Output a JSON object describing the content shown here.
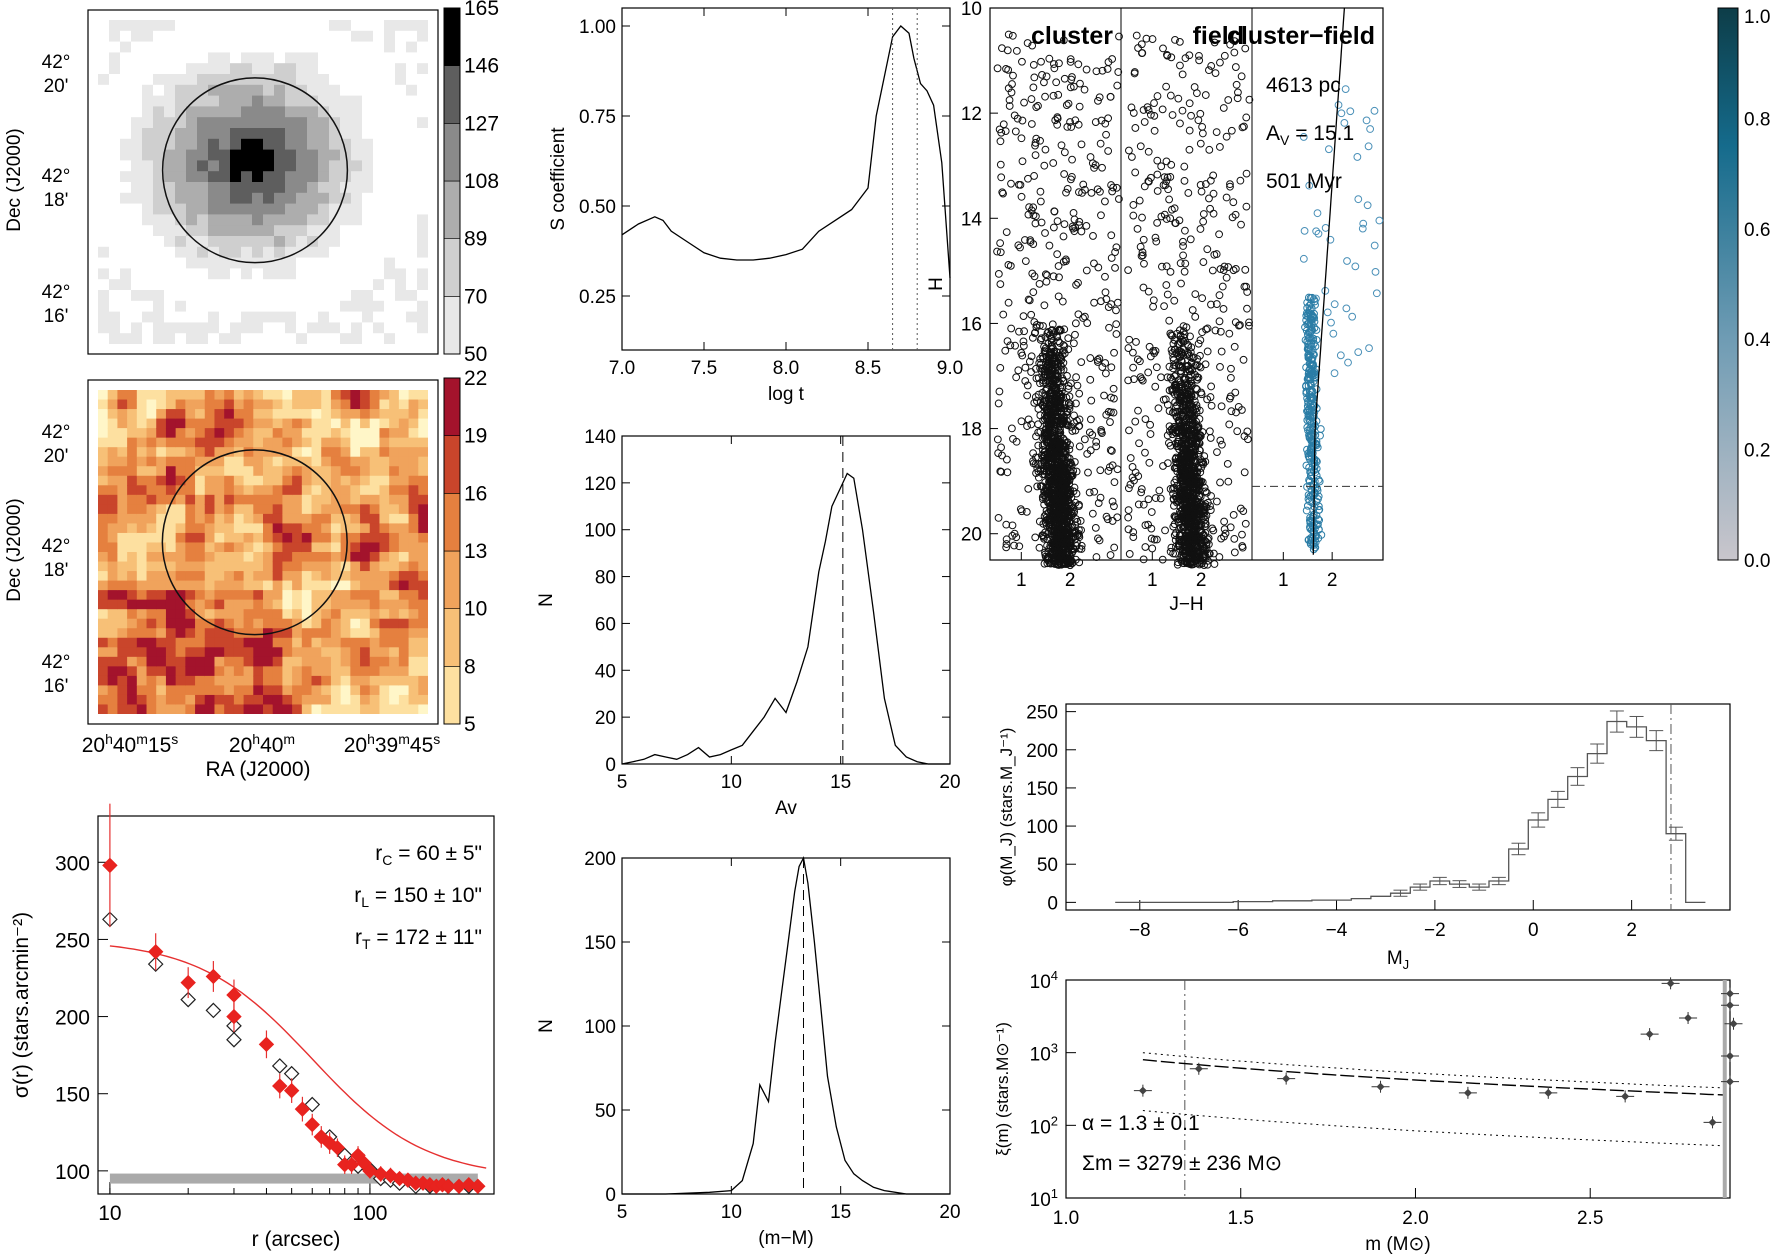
{
  "chart_data": [
    {
      "id": "density_map",
      "type": "heatmap",
      "ylabel": "Dec (J2000)",
      "yticks": [
        {
          "deg": "42°",
          "min": "20'"
        },
        {
          "deg": "42°",
          "min": "18'"
        },
        {
          "deg": "42°",
          "min": "16'"
        }
      ],
      "colorbar": {
        "levels": [
          "50",
          "70",
          "89",
          "108",
          "127",
          "146",
          "165"
        ],
        "colors": [
          "#ffffff",
          "#e8e8e8",
          "#cfcfcf",
          "#adadad",
          "#8a8a8a",
          "#5e5e5e",
          "#000000"
        ]
      },
      "circle_center_frac": [
        0.5,
        0.47
      ],
      "circle_radius_frac": 0.28
    },
    {
      "id": "extinction_map",
      "type": "heatmap",
      "ylabel": "Dec (J2000)",
      "xlabel": "RA (J2000)",
      "yticks": [
        {
          "deg": "42°",
          "min": "20'"
        },
        {
          "deg": "42°",
          "min": "18'"
        },
        {
          "deg": "42°",
          "min": "16'"
        }
      ],
      "xticks": [
        {
          "h": "20",
          "m": "40",
          "s": "15",
          "unit_s": "s"
        },
        {
          "h": "20",
          "m": "40",
          "s": "",
          "unit_s": "m"
        },
        {
          "h": "20",
          "m": "39",
          "s": "45",
          "unit_s": "s"
        }
      ],
      "colorbar": {
        "levels": [
          "5",
          "8",
          "10",
          "13",
          "16",
          "19",
          "22"
        ],
        "colors": [
          "#fff6c8",
          "#fde0a0",
          "#f7c077",
          "#f0a35c",
          "#e5803f",
          "#c9452b",
          "#a3132c"
        ]
      }
    },
    {
      "id": "s_coefficient",
      "type": "line",
      "xlabel": "log t",
      "ylabel": "S coefficient",
      "xlim": [
        7.0,
        9.0
      ],
      "ylim": [
        0.1,
        1.05
      ],
      "xticks": [
        "7.0",
        "7.5",
        "8.0",
        "8.5",
        "9.0"
      ],
      "yticks": [
        "0.25",
        "0.50",
        "0.75",
        "1.00"
      ],
      "x": [
        7.0,
        7.1,
        7.2,
        7.25,
        7.3,
        7.4,
        7.5,
        7.6,
        7.7,
        7.8,
        7.9,
        8.0,
        8.1,
        8.2,
        8.3,
        8.4,
        8.5,
        8.55,
        8.6,
        8.65,
        8.7,
        8.75,
        8.78,
        8.82,
        8.86,
        8.9,
        8.95,
        9.0
      ],
      "y": [
        0.42,
        0.45,
        0.47,
        0.46,
        0.43,
        0.4,
        0.37,
        0.355,
        0.35,
        0.35,
        0.355,
        0.365,
        0.38,
        0.43,
        0.46,
        0.49,
        0.55,
        0.75,
        0.86,
        0.97,
        1.0,
        0.98,
        0.91,
        0.84,
        0.82,
        0.78,
        0.62,
        0.3
      ],
      "vlines": [
        8.65,
        8.8
      ]
    },
    {
      "id": "av_hist",
      "type": "line",
      "xlabel": "Av",
      "ylabel": "N",
      "xlim": [
        5,
        20
      ],
      "ylim": [
        0,
        140
      ],
      "xticks": [
        "5",
        "10",
        "15",
        "20"
      ],
      "yticks": [
        "0",
        "20",
        "40",
        "60",
        "80",
        "100",
        "120",
        "140"
      ],
      "x": [
        5,
        5.5,
        6,
        6.5,
        7,
        7.5,
        8,
        8.5,
        9,
        9.5,
        10,
        10.5,
        11,
        11.5,
        12,
        12.5,
        13,
        13.5,
        14,
        14.3,
        14.6,
        15,
        15.3,
        15.6,
        16,
        16.5,
        17,
        17.5,
        18,
        18.5,
        19,
        20
      ],
      "y": [
        0,
        1,
        2,
        4,
        3,
        2,
        4,
        7,
        3,
        4,
        6,
        8,
        14,
        20,
        28,
        22,
        35,
        50,
        82,
        95,
        110,
        118,
        124,
        122,
        100,
        65,
        28,
        8,
        3,
        1,
        0,
        0
      ],
      "vline": 15.1
    },
    {
      "id": "dm_hist",
      "type": "line",
      "xlabel": "(m−M)",
      "ylabel": "N",
      "xlim": [
        5,
        20
      ],
      "ylim": [
        0,
        200
      ],
      "xticks": [
        "5",
        "10",
        "15",
        "20"
      ],
      "yticks": [
        "0",
        "50",
        "100",
        "150",
        "200"
      ],
      "x": [
        5,
        7,
        9,
        10,
        10.5,
        11,
        11.3,
        11.7,
        12,
        12.3,
        12.6,
        12.9,
        13.1,
        13.3,
        13.5,
        13.8,
        14.1,
        14.4,
        14.8,
        15.2,
        15.6,
        16,
        16.5,
        17,
        18,
        20
      ],
      "y": [
        0,
        0,
        1,
        2,
        8,
        30,
        65,
        55,
        90,
        120,
        150,
        180,
        195,
        200,
        185,
        150,
        110,
        70,
        40,
        20,
        12,
        8,
        4,
        2,
        0,
        0
      ],
      "vline": 13.3
    },
    {
      "id": "radial_profile",
      "type": "scatter",
      "xlabel": "r (arcsec)",
      "ylabel": "σ(r) (stars.arcmin⁻²)",
      "xlim": [
        9,
        300
      ],
      "ylim": [
        85,
        330
      ],
      "xscale": "log",
      "xticks": [
        "10",
        "100"
      ],
      "yticks": [
        "100",
        "150",
        "200",
        "250",
        "300"
      ],
      "annotations": [
        "r_C = 60 ± 5\"",
        "r_L = 150 ± 10\"",
        "r_T = 172 ± 11\""
      ],
      "annotation_parts": [
        {
          "sym": "r",
          "sub": "C",
          "txt": " = 60 ±  5\""
        },
        {
          "sym": "r",
          "sub": "L",
          "txt": " = 150 ± 10\""
        },
        {
          "sym": "r",
          "sub": "T",
          "txt": " = 172 ± 11\""
        }
      ],
      "filled": {
        "x": [
          10,
          15,
          20,
          25,
          30,
          30,
          40,
          45,
          50,
          55,
          60,
          65,
          70,
          75,
          80,
          85,
          90,
          95,
          100,
          110,
          120,
          130,
          140,
          150,
          160,
          170,
          180,
          190,
          200,
          220,
          240,
          260
        ],
        "y": [
          298,
          242,
          222,
          226,
          214,
          200,
          182,
          155,
          152,
          140,
          130,
          122,
          118,
          115,
          104,
          104,
          110,
          105,
          100,
          98,
          97,
          95,
          94,
          92,
          92,
          91,
          90,
          91,
          90,
          90,
          91,
          90
        ],
        "err": [
          40,
          12,
          10,
          10,
          10,
          10,
          9,
          8,
          8,
          8,
          7,
          7,
          7,
          6,
          6,
          6,
          6,
          6,
          5,
          5,
          5,
          4,
          4,
          4,
          4,
          4,
          4,
          4,
          4,
          4,
          4,
          4
        ]
      },
      "open": {
        "x": [
          10,
          15,
          20,
          25,
          30,
          30,
          45,
          50,
          60,
          70,
          80,
          90,
          100,
          110,
          120,
          130,
          150,
          170,
          200,
          240
        ],
        "y": [
          263,
          234,
          211,
          204,
          194,
          185,
          168,
          163,
          143,
          122,
          110,
          103,
          101,
          95,
          94,
          92,
          90,
          90,
          90,
          90
        ]
      },
      "background": 95,
      "fit": {
        "core": 60,
        "peak": 250,
        "bg": 95
      }
    },
    {
      "id": "cmd",
      "type": "scatter",
      "xlabel": "J−H",
      "ylabel": "H",
      "ylim": [
        20.5,
        10
      ],
      "xlim": [
        0.4,
        3.0
      ],
      "yticks": [
        "10",
        "12",
        "14",
        "16",
        "18",
        "20"
      ],
      "xticks": [
        "1",
        "2"
      ],
      "panels": [
        "cluster",
        "field",
        "cluster−field"
      ],
      "info": {
        "distance": "4613 pc",
        "av_pre": "A",
        "av_sub": "V",
        "av_val": " = 15.1",
        "age": "501 Myr"
      },
      "hline": 19.1,
      "colorbar": {
        "ticks": [
          "0.0",
          "0.2",
          "0.4",
          "0.6",
          "0.8",
          "1.0"
        ]
      }
    },
    {
      "id": "luminosity_function",
      "type": "bar",
      "xlabel": "M_J",
      "ylabel": "φ(M_J) (stars.M_J⁻¹)",
      "xlim": [
        -9.5,
        4
      ],
      "ylim": [
        -10,
        260
      ],
      "xticks": [
        "−8",
        "−6",
        "−4",
        "−2",
        "0",
        "2"
      ],
      "yticks": [
        "0",
        "50",
        "100",
        "150",
        "200",
        "250"
      ],
      "bin_edges": [
        -8.5,
        -8.1,
        -7.7,
        -7.3,
        -6.9,
        -6.5,
        -6.1,
        -5.7,
        -5.3,
        -4.9,
        -4.5,
        -4.1,
        -3.7,
        -3.3,
        -2.9,
        -2.5,
        -2.1,
        -1.7,
        -1.3,
        -0.9,
        -0.5,
        -0.1,
        0.3,
        0.7,
        1.1,
        1.5,
        1.9,
        2.3,
        2.7,
        3.1,
        3.5
      ],
      "values": [
        0,
        0,
        0,
        0,
        0,
        0,
        1,
        1,
        2,
        2,
        3,
        3,
        5,
        8,
        12,
        20,
        28,
        24,
        20,
        28,
        70,
        108,
        135,
        165,
        195,
        237,
        230,
        212,
        90,
        0
      ],
      "vline": 2.8
    },
    {
      "id": "mass_function",
      "type": "scatter",
      "xlabel": "m (M⊙)",
      "ylabel": "ξ(m) (stars.M⊙⁻¹)",
      "xlim": [
        1.0,
        2.9
      ],
      "ylim_log": [
        1,
        4
      ],
      "yscale": "log",
      "xticks": [
        "1.0",
        "1.5",
        "2.0",
        "2.5"
      ],
      "yticks": [
        "10¹",
        "10²",
        "10³",
        "10⁴"
      ],
      "ytick_parts": [
        {
          "b": "10",
          "e": "1"
        },
        {
          "b": "10",
          "e": "2"
        },
        {
          "b": "10",
          "e": "3"
        },
        {
          "b": "10",
          "e": "4"
        }
      ],
      "alpha": "α = 1.3 ± 0.1",
      "total_mass": "Σm = 3279 ± 236 M⊙",
      "x": [
        1.22,
        1.38,
        1.63,
        1.9,
        2.15,
        2.38,
        2.6,
        2.67,
        2.73,
        2.78,
        2.85,
        2.9,
        2.9,
        2.91,
        2.9,
        2.9
      ],
      "y": [
        300,
        600,
        440,
        340,
        280,
        280,
        250,
        1800,
        9000,
        3000,
        110,
        6500,
        4500,
        2500,
        900,
        400
      ],
      "vline": 1.34
    }
  ]
}
